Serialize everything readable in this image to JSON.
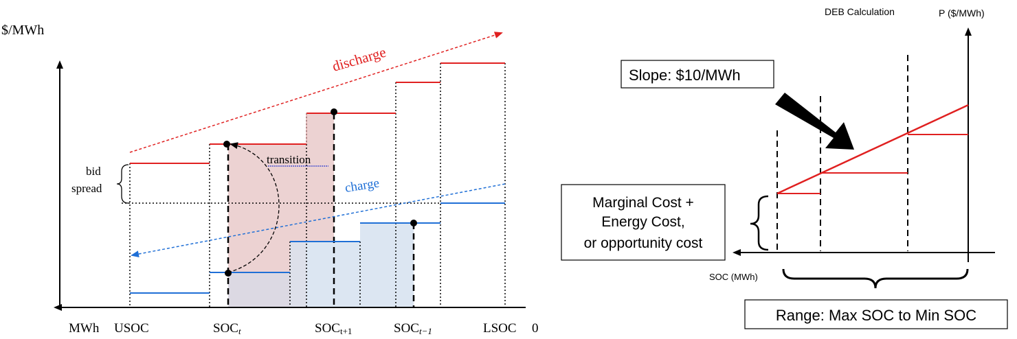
{
  "left_diagram": {
    "y_axis_label": "$/MWh",
    "x_axis_unit": "MWh",
    "x_labels": {
      "usoc": "USOC",
      "soc_t": "SOC",
      "soc_t_sub": "t",
      "soc_t1": "SOC",
      "soc_t1_sub": "t+1",
      "soc_tm1": "SOC",
      "soc_tm1_sub": "t−1",
      "lsoc": "LSOC",
      "zero": "0"
    },
    "annotations": {
      "discharge": "discharge",
      "charge": "charge",
      "transition": "transition",
      "bid": "bid",
      "spread": "spread"
    },
    "colors": {
      "discharge": "#e02020",
      "charge": "#1f6fd6",
      "pink_fill": "#ecd2d2",
      "blue_fill": "#dce6f2"
    }
  },
  "right_diagram": {
    "title": "DEB Calculation",
    "y_axis_label": "P ($/MWh)",
    "x_axis_label": "SOC (MWh)",
    "slope_box": "Slope: $10/MWh",
    "cost_box": [
      "Marginal Cost +",
      "Energy Cost,",
      "or opportunity cost"
    ],
    "range_box": "Range: Max SOC to Min SOC",
    "colors": {
      "curve": "#e02020"
    }
  }
}
